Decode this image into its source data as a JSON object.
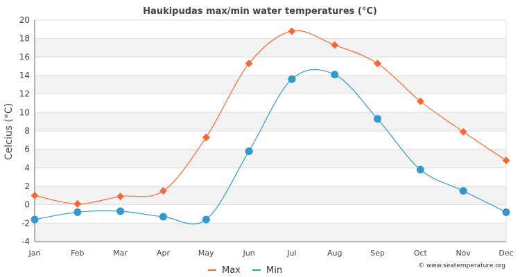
{
  "chart_data": {
    "type": "line",
    "title": "Haukipudas max/min water temperatures (°C)",
    "xlabel": "",
    "ylabel": "Celcius (°C)",
    "ylim": [
      -4,
      20
    ],
    "yticks": [
      -4,
      -2,
      0,
      2,
      4,
      6,
      8,
      10,
      12,
      14,
      16,
      18,
      20
    ],
    "ytick_labels": [
      "-4",
      "-2",
      "0",
      "2",
      "4",
      "6",
      "8",
      "10",
      "12",
      "14",
      "16",
      "18",
      "20"
    ],
    "categories": [
      "Jan",
      "Feb",
      "Mar",
      "Apr",
      "May",
      "Jun",
      "Jul",
      "Aug",
      "Sep",
      "Oct",
      "Nov",
      "Dec"
    ],
    "grid": true,
    "legend_position": "bottom-center",
    "series": [
      {
        "name": "Max",
        "color": "#ff6633",
        "marker": "diamond",
        "values": [
          1.0,
          0.1,
          0.9,
          1.5,
          7.3,
          15.3,
          18.8,
          17.3,
          15.3,
          11.2,
          7.9,
          4.8
        ]
      },
      {
        "name": "Min",
        "color": "#3399cc",
        "marker": "circle",
        "values": [
          -1.6,
          -0.8,
          -0.7,
          -1.3,
          -1.6,
          5.8,
          13.6,
          14.1,
          9.3,
          3.8,
          1.5,
          -0.8
        ]
      }
    ],
    "credit": "© www.seatemperature.org"
  }
}
